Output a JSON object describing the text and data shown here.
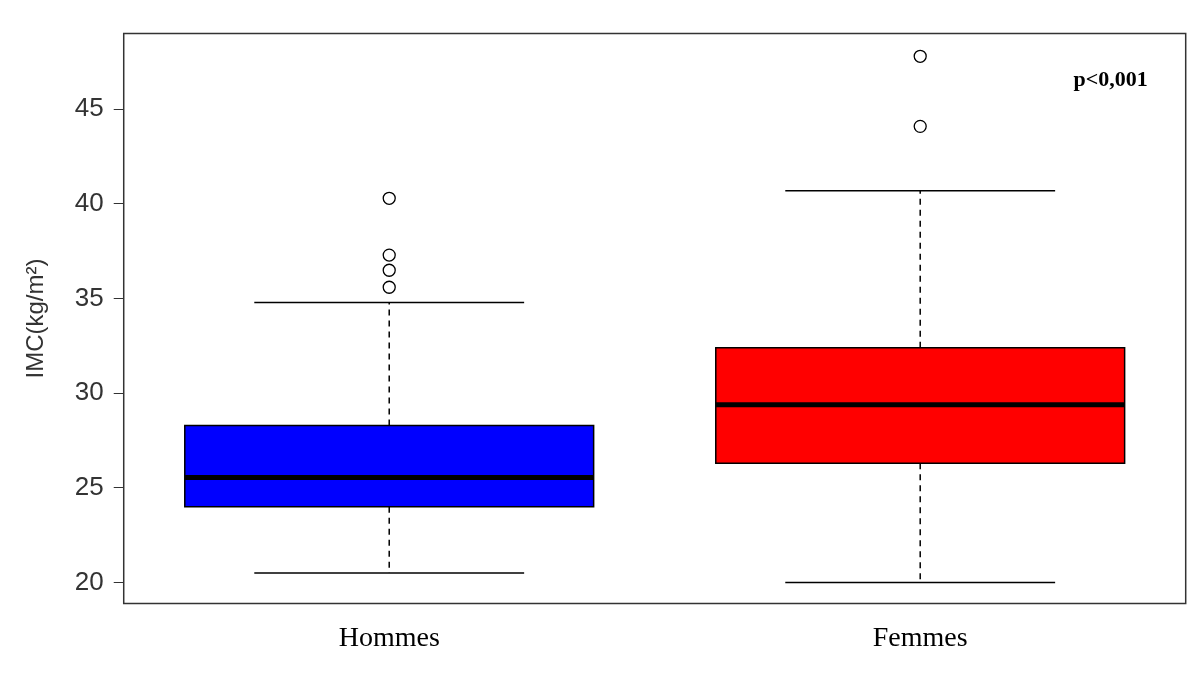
{
  "chart_data": {
    "type": "box",
    "ylabel": "IMC(kg/m²)",
    "categories": [
      "Hommes",
      "Femmes"
    ],
    "colors": [
      "#0000ff",
      "#ff0000"
    ],
    "boxes": [
      {
        "low": 20.5,
        "q1": 24.0,
        "median": 25.55,
        "q3": 28.3,
        "high": 34.8,
        "outliers": [
          35.6,
          36.5,
          37.3,
          40.3
        ]
      },
      {
        "low": 20.0,
        "q1": 26.3,
        "median": 29.4,
        "q3": 32.4,
        "high": 40.7,
        "outliers": [
          44.1,
          47.8
        ]
      }
    ],
    "ylim": [
      18.9,
      49
    ],
    "yticks": [
      20,
      25,
      30,
      35,
      40,
      45
    ],
    "grid": false,
    "legend": false,
    "marker": "circle",
    "annotations": [
      "p<0,001"
    ]
  }
}
